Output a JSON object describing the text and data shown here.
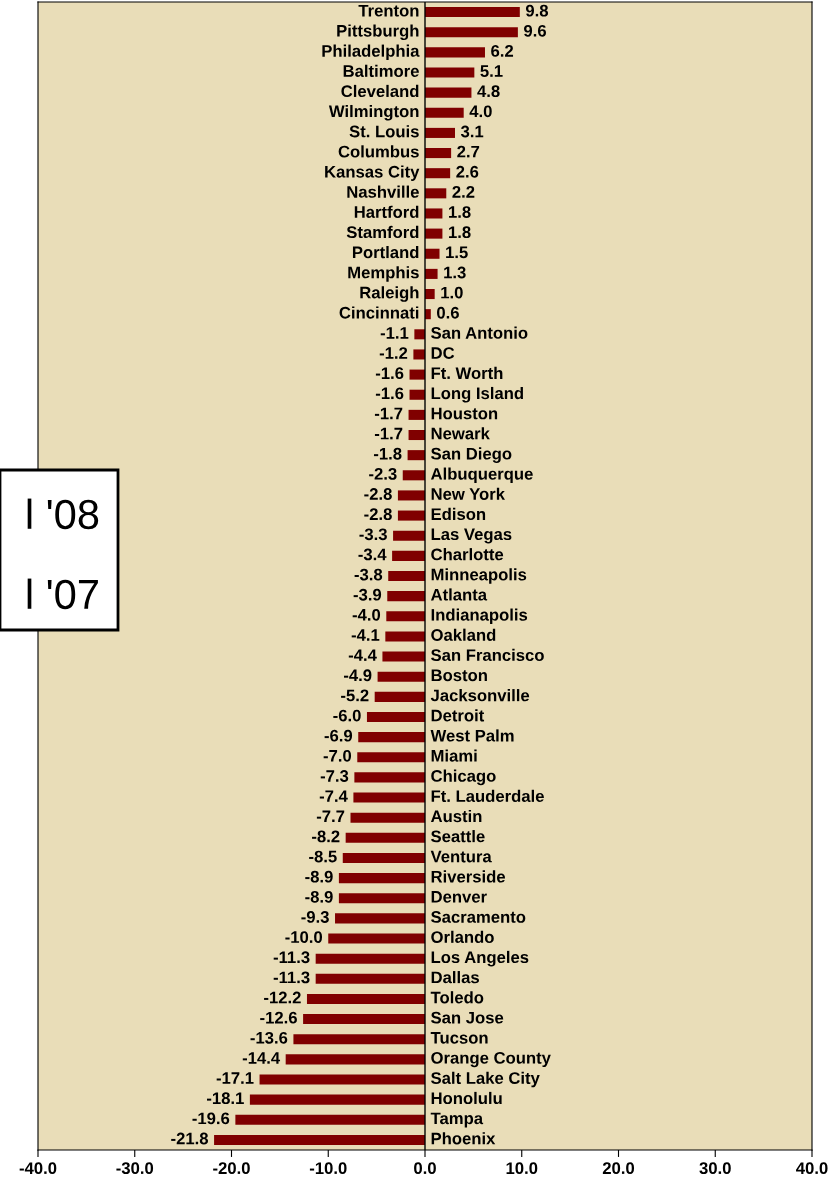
{
  "chart_data": {
    "type": "bar",
    "orientation": "horizontal",
    "categories": [
      "Trenton",
      "Pittsburgh",
      "Philadelphia",
      "Baltimore",
      "Cleveland",
      "Wilmington",
      "St. Louis",
      "Columbus",
      "Kansas City",
      "Nashville",
      "Hartford",
      "Stamford",
      "Portland",
      "Memphis",
      "Raleigh",
      "Cincinnati",
      "San Antonio",
      "DC",
      "Ft. Worth",
      "Long Island",
      "Houston",
      "Newark",
      "San Diego",
      "Albuquerque",
      "New York",
      "Edison",
      "Las Vegas",
      "Charlotte",
      "Minneapolis",
      "Atlanta",
      "Indianapolis",
      "Oakland",
      "San Francisco",
      "Boston",
      "Jacksonville",
      "Detroit",
      "West Palm",
      "Miami",
      "Chicago",
      "Ft. Lauderdale",
      "Austin",
      "Seattle",
      "Ventura",
      "Riverside",
      "Denver",
      "Sacramento",
      "Orlando",
      "Los Angeles",
      "Dallas",
      "Toledo",
      "San Jose",
      "Tucson",
      "Orange County",
      "Salt Lake City",
      "Honolulu",
      "Tampa",
      "Phoenix"
    ],
    "values": [
      9.8,
      9.6,
      6.2,
      5.1,
      4.8,
      4.0,
      3.1,
      2.7,
      2.6,
      2.2,
      1.8,
      1.8,
      1.5,
      1.3,
      1.0,
      0.6,
      -1.1,
      -1.2,
      -1.6,
      -1.6,
      -1.7,
      -1.7,
      -1.8,
      -2.3,
      -2.8,
      -2.8,
      -3.3,
      -3.4,
      -3.8,
      -3.9,
      -4.0,
      -4.1,
      -4.4,
      -4.9,
      -5.2,
      -6.0,
      -6.9,
      -7.0,
      -7.3,
      -7.4,
      -7.7,
      -8.2,
      -8.5,
      -8.9,
      -8.9,
      -9.3,
      -10.0,
      -11.3,
      -11.3,
      -12.2,
      -12.6,
      -13.6,
      -14.4,
      -17.1,
      -18.1,
      -19.6,
      -21.8
    ],
    "color": "#800000",
    "xlim": [
      -40,
      40
    ],
    "xticks": [
      {
        "value": -40,
        "label": "-40.0"
      },
      {
        "value": -30,
        "label": "-30.0"
      },
      {
        "value": -20,
        "label": "-20.0"
      },
      {
        "value": -10,
        "label": "-10.0"
      },
      {
        "value": 0,
        "label": "0.0"
      },
      {
        "value": 10,
        "label": "10.0"
      },
      {
        "value": 20,
        "label": "20.0"
      },
      {
        "value": 30,
        "label": "30.0"
      },
      {
        "value": 40,
        "label": "40.0"
      }
    ],
    "value_labels": [
      "9.8",
      "9.6",
      "6.2",
      "5.1",
      "4.8",
      "4.0",
      "3.1",
      "2.7",
      "2.6",
      "2.2",
      "1.8",
      "1.8",
      "1.5",
      "1.3",
      "1.0",
      "0.6",
      "-1.1",
      "-1.2",
      "-1.6",
      "-1.6",
      "-1.7",
      "-1.7",
      "-1.8",
      "-2.3",
      "-2.8",
      "-2.8",
      "-3.3",
      "-3.4",
      "-3.8",
      "-3.9",
      "-4.0",
      "-4.1",
      "-4.4",
      "-4.9",
      "-5.2",
      "-6.0",
      "-6.9",
      "-7.0",
      "-7.3",
      "-7.4",
      "-7.7",
      "-8.2",
      "-8.5",
      "-8.9",
      "-8.9",
      "-9.3",
      "-10.0",
      "-11.3",
      "-11.3",
      "-12.2",
      "-12.6",
      "-13.6",
      "-14.4",
      "-17.1",
      "-18.1",
      "-19.6",
      "-21.8"
    ],
    "grid": false,
    "annotations": [
      "l '08",
      "l '07"
    ]
  }
}
